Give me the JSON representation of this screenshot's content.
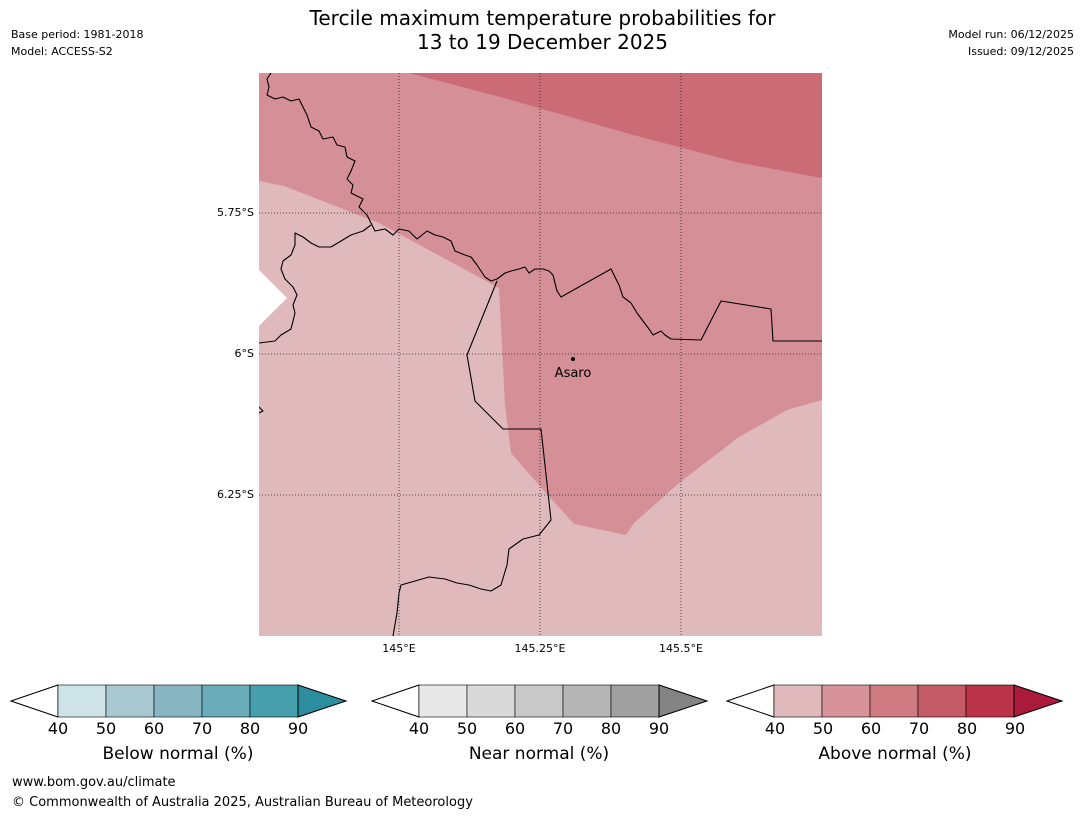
{
  "title": {
    "line1": "Tercile maximum temperature probabilities for",
    "line2": "13 to 19 December 2025"
  },
  "meta_left": {
    "base_period": "Base period: 1981-2018",
    "model": "Model: ACCESS-S2"
  },
  "meta_right": {
    "model_run": "Model run: 06/12/2025",
    "issued": "Issued: 09/12/2025"
  },
  "map": {
    "lat_labels": [
      "5.75°S",
      "6°S",
      "6.25°S"
    ],
    "lon_labels": [
      "145°E",
      "145.25°E",
      "145.5°E"
    ],
    "place": {
      "name": "Asaro"
    },
    "colors": {
      "above_40_50": "#e0b9bd",
      "above_50_60": "#d58f96",
      "above_60_70": "#ca6b75"
    }
  },
  "colorbars": [
    {
      "caption": "Below normal (%)",
      "ticks": [
        "40",
        "50",
        "60",
        "70",
        "80",
        "90"
      ],
      "colors": [
        "#cde3e8",
        "#a7c8cf",
        "#88b6c2",
        "#6aacba",
        "#479fad"
      ],
      "over_color": "#2b8d9d"
    },
    {
      "caption": "Near normal (%)",
      "ticks": [
        "40",
        "50",
        "60",
        "70",
        "80",
        "90"
      ],
      "colors": [
        "#e8e8e8",
        "#d9d9d9",
        "#c9c9c9",
        "#b5b5b5",
        "#a0a0a0"
      ],
      "over_color": "#838383"
    },
    {
      "caption": "Above normal (%)",
      "ticks": [
        "40",
        "50",
        "60",
        "70",
        "80",
        "90"
      ],
      "colors": [
        "#e0b9bd",
        "#d6939a",
        "#cd7a80",
        "#c45b67",
        "#bb3349"
      ],
      "over_color": "#ab1a3a"
    }
  ],
  "footer": {
    "url": "www.bom.gov.au/climate",
    "copyright": "© Commonwealth of Australia 2025, Australian Bureau of Meteorology"
  }
}
